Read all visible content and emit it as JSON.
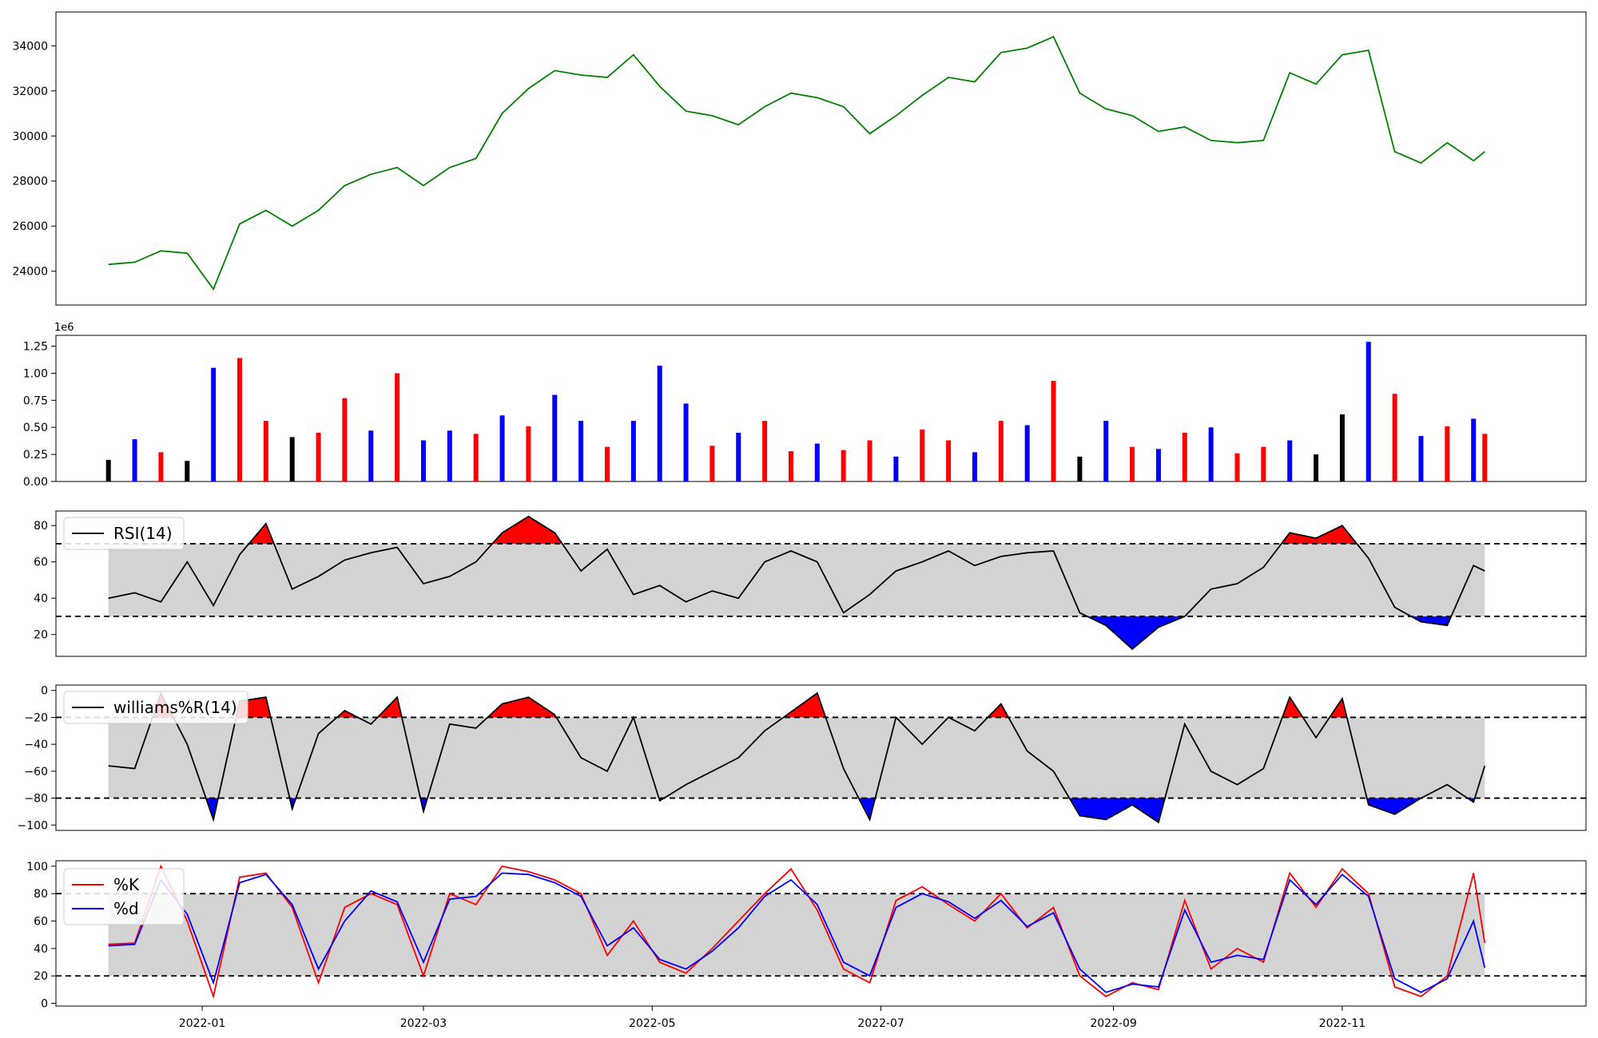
{
  "chart_data": [
    {
      "type": "line",
      "panel": "price",
      "ylim": [
        22500,
        35500
      ],
      "yticks": [
        "24000",
        "26000",
        "28000",
        "30000",
        "32000",
        "34000"
      ],
      "grid": false,
      "line_color": "#008000",
      "x_range": [
        "2021-11-23",
        "2023-01-05"
      ],
      "x": [
        "2021-12-07",
        "2021-12-14",
        "2021-12-21",
        "2021-12-28",
        "2022-01-04",
        "2022-01-11",
        "2022-01-18",
        "2022-01-25",
        "2022-02-01",
        "2022-02-08",
        "2022-02-15",
        "2022-02-22",
        "2022-03-01",
        "2022-03-08",
        "2022-03-15",
        "2022-03-22",
        "2022-03-29",
        "2022-04-05",
        "2022-04-12",
        "2022-04-19",
        "2022-04-26",
        "2022-05-03",
        "2022-05-10",
        "2022-05-17",
        "2022-05-24",
        "2022-05-31",
        "2022-06-07",
        "2022-06-14",
        "2022-06-21",
        "2022-06-28",
        "2022-07-05",
        "2022-07-12",
        "2022-07-19",
        "2022-07-26",
        "2022-08-02",
        "2022-08-09",
        "2022-08-16",
        "2022-08-23",
        "2022-08-30",
        "2022-09-06",
        "2022-09-13",
        "2022-09-20",
        "2022-09-27",
        "2022-10-04",
        "2022-10-11",
        "2022-10-18",
        "2022-10-25",
        "2022-11-01",
        "2022-11-08",
        "2022-11-15",
        "2022-11-22",
        "2022-11-29",
        "2022-12-06",
        "2022-12-09"
      ],
      "values": [
        24300,
        24400,
        24900,
        24800,
        23200,
        26100,
        26700,
        26000,
        26700,
        27800,
        28300,
        28600,
        27800,
        28600,
        29000,
        31000,
        32100,
        32900,
        32700,
        32600,
        33600,
        32200,
        31100,
        30900,
        30500,
        31300,
        31900,
        31700,
        31300,
        30100,
        30900,
        31800,
        32600,
        32400,
        33700,
        33900,
        34400,
        31900,
        31200,
        30900,
        30200,
        30400,
        29800,
        29700,
        29800,
        32800,
        32300,
        33600,
        33800,
        29300,
        28800,
        29700,
        28900,
        29300
      ]
    },
    {
      "type": "bar",
      "panel": "volume",
      "ylim": [
        0,
        1350000
      ],
      "yticks": [
        "0.00",
        "0.25",
        "0.50",
        "0.75",
        "1.00",
        "1.25"
      ],
      "offset_label": "1e6",
      "colors": {
        "up": "#ff0000",
        "down": "#0000ff",
        "flat": "#000000"
      },
      "x_range": [
        "2021-11-23",
        "2023-01-05"
      ],
      "x": [
        "2021-12-07",
        "2021-12-14",
        "2021-12-21",
        "2021-12-28",
        "2022-01-04",
        "2022-01-11",
        "2022-01-18",
        "2022-01-25",
        "2022-02-01",
        "2022-02-08",
        "2022-02-15",
        "2022-02-22",
        "2022-03-01",
        "2022-03-08",
        "2022-03-15",
        "2022-03-22",
        "2022-03-29",
        "2022-04-05",
        "2022-04-12",
        "2022-04-19",
        "2022-04-26",
        "2022-05-03",
        "2022-05-10",
        "2022-05-17",
        "2022-05-24",
        "2022-05-31",
        "2022-06-07",
        "2022-06-14",
        "2022-06-21",
        "2022-06-28",
        "2022-07-05",
        "2022-07-12",
        "2022-07-19",
        "2022-07-26",
        "2022-08-02",
        "2022-08-09",
        "2022-08-16",
        "2022-08-23",
        "2022-08-30",
        "2022-09-06",
        "2022-09-13",
        "2022-09-20",
        "2022-09-27",
        "2022-10-04",
        "2022-10-11",
        "2022-10-18",
        "2022-10-25",
        "2022-11-01",
        "2022-11-08",
        "2022-11-15",
        "2022-11-22",
        "2022-11-29",
        "2022-12-06",
        "2022-12-09"
      ],
      "values": [
        200000,
        390000,
        270000,
        190000,
        1050000,
        1140000,
        560000,
        410000,
        450000,
        770000,
        470000,
        1000000,
        380000,
        470000,
        440000,
        610000,
        510000,
        800000,
        560000,
        320000,
        560000,
        1070000,
        720000,
        330000,
        450000,
        560000,
        280000,
        350000,
        290000,
        380000,
        230000,
        480000,
        380000,
        270000,
        560000,
        520000,
        930000,
        230000,
        560000,
        320000,
        300000,
        450000,
        500000,
        260000,
        320000,
        380000,
        250000,
        620000,
        1290000,
        810000,
        420000,
        510000,
        580000,
        440000
      ],
      "dir": [
        "flat",
        "down",
        "up",
        "flat",
        "down",
        "up",
        "up",
        "flat",
        "up",
        "up",
        "down",
        "up",
        "down",
        "down",
        "up",
        "down",
        "up",
        "down",
        "down",
        "up",
        "down",
        "down",
        "down",
        "up",
        "down",
        "up",
        "up",
        "down",
        "up",
        "up",
        "down",
        "up",
        "up",
        "down",
        "up",
        "down",
        "up",
        "flat",
        "down",
        "up",
        "down",
        "up",
        "down",
        "up",
        "up",
        "down",
        "flat",
        "flat",
        "down",
        "up",
        "down",
        "up",
        "down",
        "up"
      ]
    },
    {
      "type": "line",
      "panel": "rsi",
      "legend": [
        "RSI(14)"
      ],
      "legend_position": "upper-left",
      "ylim": [
        8,
        88
      ],
      "yticks": [
        "20",
        "40",
        "60",
        "80"
      ],
      "thresholds": [
        70,
        30
      ],
      "fill_above_color": "#ff0000",
      "fill_below_color": "#0000ff",
      "band_color": "#d3d3d3",
      "x_range": [
        "2021-11-23",
        "2023-01-05"
      ],
      "x": [
        "2021-12-07",
        "2021-12-14",
        "2021-12-21",
        "2021-12-28",
        "2022-01-04",
        "2022-01-11",
        "2022-01-18",
        "2022-01-25",
        "2022-02-01",
        "2022-02-08",
        "2022-02-15",
        "2022-02-22",
        "2022-03-01",
        "2022-03-08",
        "2022-03-15",
        "2022-03-22",
        "2022-03-29",
        "2022-04-05",
        "2022-04-12",
        "2022-04-19",
        "2022-04-26",
        "2022-05-03",
        "2022-05-10",
        "2022-05-17",
        "2022-05-24",
        "2022-05-31",
        "2022-06-07",
        "2022-06-14",
        "2022-06-21",
        "2022-06-28",
        "2022-07-05",
        "2022-07-12",
        "2022-07-19",
        "2022-07-26",
        "2022-08-02",
        "2022-08-09",
        "2022-08-16",
        "2022-08-23",
        "2022-08-30",
        "2022-09-06",
        "2022-09-13",
        "2022-09-20",
        "2022-09-27",
        "2022-10-04",
        "2022-10-11",
        "2022-10-18",
        "2022-10-25",
        "2022-11-01",
        "2022-11-08",
        "2022-11-15",
        "2022-11-22",
        "2022-11-29",
        "2022-12-06",
        "2022-12-09"
      ],
      "values": [
        40,
        43,
        38,
        60,
        36,
        64,
        81,
        45,
        52,
        61,
        65,
        68,
        48,
        52,
        60,
        76,
        85,
        76,
        55,
        67,
        42,
        47,
        38,
        44,
        40,
        60,
        66,
        60,
        32,
        42,
        55,
        60,
        66,
        58,
        63,
        65,
        66,
        32,
        25,
        12,
        24,
        30,
        45,
        48,
        57,
        76,
        73,
        80,
        62,
        35,
        27,
        25,
        58,
        55
      ]
    },
    {
      "type": "line",
      "panel": "williams",
      "legend": [
        "williams%R(14)"
      ],
      "legend_position": "upper-left",
      "ylim": [
        -104,
        4
      ],
      "yticks": [
        "0",
        "−20",
        "−40",
        "−60",
        "−80",
        "−100"
      ],
      "thresholds": [
        -20,
        -80
      ],
      "fill_above_color": "#ff0000",
      "fill_below_color": "#0000ff",
      "band_color": "#d3d3d3",
      "x_range": [
        "2021-11-23",
        "2023-01-05"
      ],
      "x": [
        "2021-12-07",
        "2021-12-14",
        "2021-12-21",
        "2021-12-28",
        "2022-01-04",
        "2022-01-11",
        "2022-01-18",
        "2022-01-25",
        "2022-02-01",
        "2022-02-08",
        "2022-02-15",
        "2022-02-22",
        "2022-03-01",
        "2022-03-08",
        "2022-03-15",
        "2022-03-22",
        "2022-03-29",
        "2022-04-05",
        "2022-04-12",
        "2022-04-19",
        "2022-04-26",
        "2022-05-03",
        "2022-05-10",
        "2022-05-17",
        "2022-05-24",
        "2022-05-31",
        "2022-06-07",
        "2022-06-14",
        "2022-06-21",
        "2022-06-28",
        "2022-07-05",
        "2022-07-12",
        "2022-07-19",
        "2022-07-26",
        "2022-08-02",
        "2022-08-09",
        "2022-08-16",
        "2022-08-23",
        "2022-08-30",
        "2022-09-06",
        "2022-09-13",
        "2022-09-20",
        "2022-09-27",
        "2022-10-04",
        "2022-10-11",
        "2022-10-18",
        "2022-10-25",
        "2022-11-01",
        "2022-11-08",
        "2022-11-15",
        "2022-11-22",
        "2022-11-29",
        "2022-12-06",
        "2022-12-09"
      ],
      "values": [
        -56,
        -58,
        -2,
        -40,
        -96,
        -8,
        -5,
        -88,
        -32,
        -15,
        -25,
        -5,
        -90,
        -25,
        -28,
        -10,
        -5,
        -18,
        -50,
        -60,
        -20,
        -82,
        -70,
        -60,
        -50,
        -30,
        -16,
        -2,
        -58,
        -96,
        -20,
        -40,
        -20,
        -30,
        -10,
        -45,
        -60,
        -93,
        -96,
        -85,
        -98,
        -25,
        -60,
        -70,
        -58,
        -5,
        -35,
        -6,
        -85,
        -92,
        -80,
        -70,
        -83,
        -56
      ]
    },
    {
      "type": "line",
      "panel": "stochastic",
      "ylim": [
        -2,
        104
      ],
      "yticks": [
        "0",
        "20",
        "40",
        "60",
        "80",
        "100"
      ],
      "thresholds": [
        80,
        20
      ],
      "band_color": "#d3d3d3",
      "legend_position": "upper-left",
      "series": [
        {
          "name": "%K",
          "color": "#ff0000",
          "values": [
            43,
            44,
            100,
            60,
            5,
            92,
            95,
            70,
            15,
            70,
            80,
            72,
            20,
            80,
            72,
            100,
            96,
            90,
            80,
            35,
            60,
            30,
            22,
            40,
            60,
            80,
            98,
            68,
            25,
            15,
            75,
            85,
            72,
            60,
            80,
            55,
            70,
            20,
            5,
            15,
            10,
            75,
            25,
            40,
            30,
            95,
            70,
            98,
            80,
            12,
            5,
            20,
            95,
            44
          ]
        },
        {
          "name": "%d",
          "color": "#0000ff",
          "values": [
            42,
            43,
            90,
            65,
            15,
            88,
            94,
            72,
            25,
            60,
            82,
            74,
            30,
            76,
            78,
            95,
            94,
            88,
            78,
            42,
            55,
            32,
            25,
            38,
            55,
            78,
            90,
            72,
            30,
            20,
            70,
            80,
            74,
            62,
            75,
            56,
            66,
            25,
            8,
            14,
            12,
            68,
            30,
            35,
            32,
            90,
            72,
            94,
            78,
            18,
            8,
            18,
            60,
            26
          ]
        }
      ],
      "x_range": [
        "2021-11-23",
        "2023-01-05"
      ],
      "x": [
        "2021-12-07",
        "2021-12-14",
        "2021-12-21",
        "2021-12-28",
        "2022-01-04",
        "2022-01-11",
        "2022-01-18",
        "2022-01-25",
        "2022-02-01",
        "2022-02-08",
        "2022-02-15",
        "2022-02-22",
        "2022-03-01",
        "2022-03-08",
        "2022-03-15",
        "2022-03-22",
        "2022-03-29",
        "2022-04-05",
        "2022-04-12",
        "2022-04-19",
        "2022-04-26",
        "2022-05-03",
        "2022-05-10",
        "2022-05-17",
        "2022-05-24",
        "2022-05-31",
        "2022-06-07",
        "2022-06-14",
        "2022-06-21",
        "2022-06-28",
        "2022-07-05",
        "2022-07-12",
        "2022-07-19",
        "2022-07-26",
        "2022-08-02",
        "2022-08-09",
        "2022-08-16",
        "2022-08-23",
        "2022-08-30",
        "2022-09-06",
        "2022-09-13",
        "2022-09-20",
        "2022-09-27",
        "2022-10-04",
        "2022-10-11",
        "2022-10-18",
        "2022-10-25",
        "2022-11-01",
        "2022-11-08",
        "2022-11-15",
        "2022-11-22",
        "2022-11-29",
        "2022-12-06",
        "2022-12-09"
      ],
      "xticks": [
        "2022-01",
        "2022-03",
        "2022-05",
        "2022-07",
        "2022-09",
        "2022-11"
      ]
    }
  ]
}
